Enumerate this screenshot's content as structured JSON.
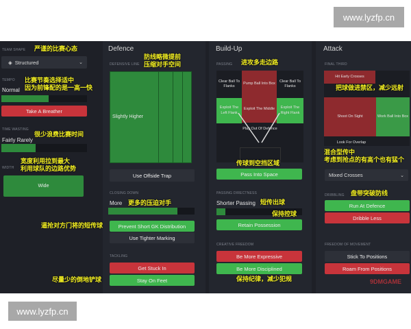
{
  "watermarks": [
    "www.lyzfp.cn",
    "www.lyzfp.cn"
  ],
  "left": {
    "team_shape": {
      "label": "TEAM SHAPE",
      "value": "Structured",
      "annotation": "严谨的比赛心态"
    },
    "tempo": {
      "label": "TEMPO",
      "value": "Normal",
      "level": 0.5,
      "button": "Take A Breather",
      "annotation": [
        "比赛节奏选择适中",
        "因为前锋配的是一高一快"
      ]
    },
    "time_wasting": {
      "label": "TIME WASTING",
      "value": "Fairly Rarely",
      "level": 0.4,
      "annotation": "很少浪费比赛时间"
    },
    "width": {
      "label": "WIDTH",
      "value": "Wide",
      "annotation": [
        "宽度利用拉到最大",
        "利用球队的边路优势"
      ]
    }
  },
  "defence": {
    "title": "Defence",
    "defensive_line": {
      "label": "DEFENSIVE LINE",
      "value": "Slightly Higher",
      "annotation": [
        "防线略微提前",
        "压缩对手空间"
      ]
    },
    "offside_button": "Use Offside Trap",
    "closing_down": {
      "label": "CLOSING DOWN",
      "value": "More",
      "level": 0.8,
      "annotation": "更多的压迫对手"
    },
    "prevent_gk": "Prevent Short GK Distribution",
    "prevent_gk_annotation": "逼抢对方门将的短传球",
    "tighter_marking": "Use Tighter Marking",
    "tackling": {
      "label": "TACKLING",
      "get_stuck_in": "Get Stuck In",
      "stay_on_feet": "Stay On Feet",
      "annotation": "尽量少的倒地铲球"
    }
  },
  "buildup": {
    "title": "Build-Up",
    "passing": {
      "label": "PASSING",
      "annotation": "进攻多走边路",
      "cells": {
        "clear_left": "Clear Ball To Flanks",
        "pump": "Pump Ball Into Box",
        "clear_right": "Clear Ball To Flanks",
        "exploit_left": "Exploit The Left Flank",
        "exploit_middle": "Exploit The Middle",
        "exploit_right": "Exploit The Right Flank",
        "play_out": "Play Out Of Defence"
      }
    },
    "pass_into_space": "Pass Into Space",
    "pass_into_space_annotation": "传球到空挡区域",
    "directness": {
      "label": "PASSING DIRECTNESS",
      "value": "Shorter Passing",
      "level": 0.1,
      "annotation": "短传出球"
    },
    "retain": "Retain Possession",
    "retain_annotation": "保持控球",
    "creative": {
      "label": "CREATIVE FREEDOM",
      "expressive": "Be More Expressive",
      "disciplined": "Be More Disciplined",
      "annotation": "保持纪律，减少犯规"
    }
  },
  "attack": {
    "title": "Attack",
    "final_third": {
      "label": "FINAL THIRD",
      "hit_early": "Hit Early Crosses",
      "shoot": "Shoot On Sight",
      "work_ball": "Work Ball Into Box",
      "overlap": "Look For Overlap",
      "annotation": "把球做进禁区，减少远射"
    },
    "crossing": {
      "value": "Mixed Crosses",
      "annotation": [
        "混合型传中",
        "考虑到抢点的有高个也有猛个"
      ]
    },
    "dribbling": {
      "label": "DRIBBLING",
      "run_at": "Run At Defence",
      "dribble_less": "Dribble Less",
      "annotation": "盘带突破防线"
    },
    "movement": {
      "label": "FREEDOM OF MOVEMENT",
      "stick": "Stick To Positions",
      "roam": "Roam From Positions"
    }
  },
  "logo": "9DMGAME",
  "colors": {
    "green": "#3fb64e",
    "red": "#c8343b",
    "annotation": "#f3ef22",
    "background": "#1e2027"
  }
}
